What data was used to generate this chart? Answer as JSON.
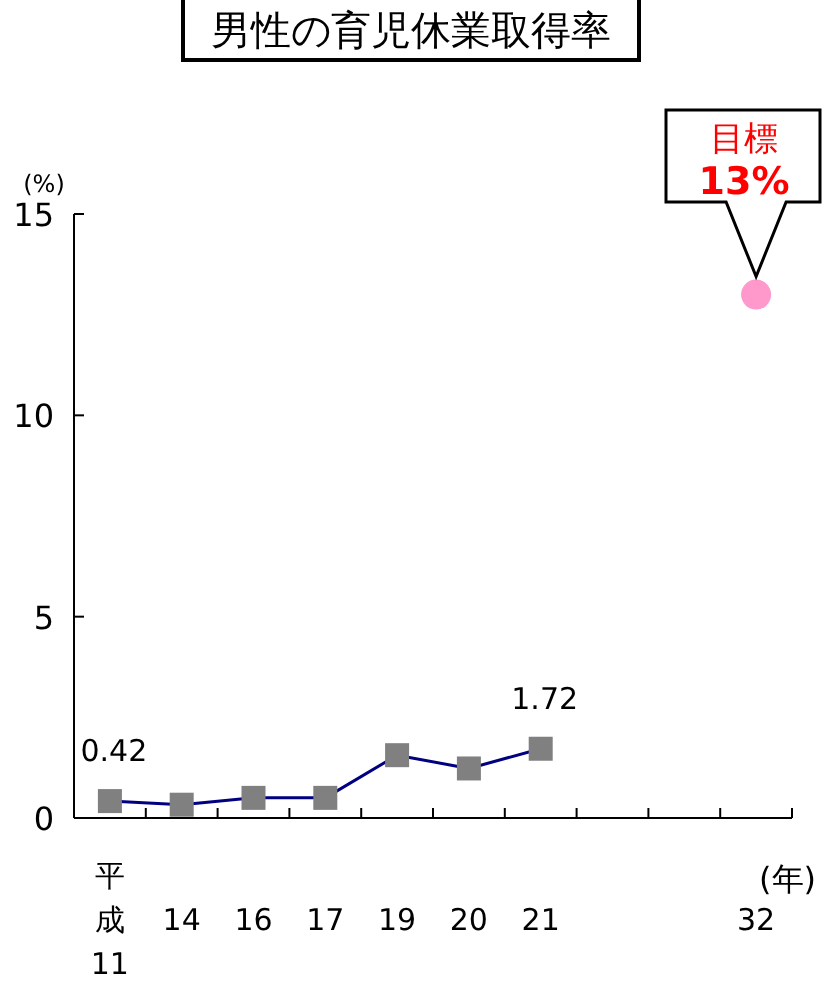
{
  "chart_data": {
    "type": "line",
    "title": "男性の育児休業取得率",
    "xlabel": "(年)",
    "ylabel": "(%)",
    "categories": [
      "平成11",
      "14",
      "16",
      "17",
      "19",
      "20",
      "21",
      null,
      null,
      "32"
    ],
    "series": [
      {
        "color": "#000080",
        "colors": [
          "#808080",
          "#808080",
          "#808080",
          "#808080",
          "#808080",
          "#808080",
          "#808080",
          null,
          null,
          null
        ],
        "marker": "square",
        "values": [
          0.42,
          0.33,
          0.5,
          0.5,
          1.56,
          1.23,
          1.72,
          null,
          null,
          null
        ],
        "value_labels": [
          "0.42",
          null,
          null,
          null,
          null,
          null,
          "1.72",
          null,
          null,
          null
        ]
      },
      {
        "type": "scatter",
        "color": "#ff99cc",
        "marker": "circle",
        "values": [
          null,
          null,
          null,
          null,
          null,
          null,
          null,
          null,
          null,
          13
        ]
      }
    ],
    "annotations": [
      {
        "text": "目標\n13%",
        "x": "32",
        "y": 13
      }
    ],
    "ylim": [
      0,
      15
    ],
    "yticks": [
      0,
      5,
      10,
      15
    ]
  }
}
